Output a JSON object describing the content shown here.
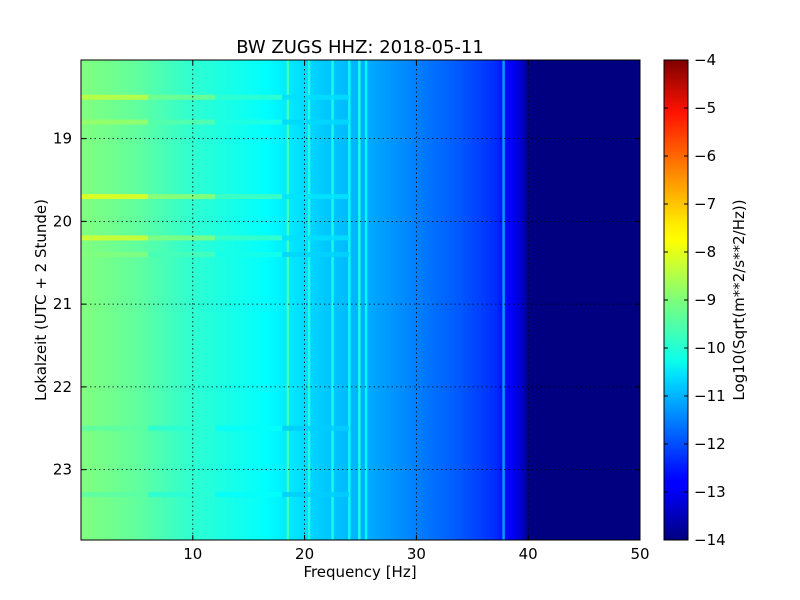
{
  "chart_data": {
    "type": "heatmap",
    "title": "BW ZUGS HHZ: 2018-05-11",
    "xlabel": "Frequency [Hz]",
    "ylabel": "Lokalzeit (UTC + 2 Stunde)",
    "xlim": [
      0,
      50
    ],
    "ylim": [
      18.05,
      23.85
    ],
    "x_ticks": [
      10,
      20,
      30,
      40,
      50
    ],
    "y_ticks": [
      19,
      20,
      21,
      22,
      23
    ],
    "grid": true,
    "colormap": "jet",
    "colorbar": {
      "label": "Log10(Sqrt(m**2/s**2/Hz))",
      "min": -14,
      "max": -4,
      "ticks": [
        -4,
        -5,
        -6,
        -7,
        -8,
        -9,
        -10,
        -11,
        -12,
        -13,
        -14
      ]
    },
    "spectrum_profile": {
      "freq_hz": [
        0,
        2,
        5,
        8,
        10,
        13,
        16,
        19,
        22,
        25,
        28,
        31,
        34,
        37,
        38.5,
        39.5,
        40,
        50
      ],
      "log10_level": [
        -9.0,
        -9.1,
        -9.3,
        -9.6,
        -9.8,
        -10.0,
        -10.2,
        -10.5,
        -10.8,
        -11.0,
        -11.3,
        -11.6,
        -11.9,
        -12.3,
        -12.8,
        -13.3,
        -14.0,
        -14.0
      ]
    },
    "spectral_lines": [
      {
        "freq_hz": 18.5,
        "log10_level": -9.6
      },
      {
        "freq_hz": 20.4,
        "log10_level": -9.9
      },
      {
        "freq_hz": 22.5,
        "log10_level": -10.1
      },
      {
        "freq_hz": 24.0,
        "log10_level": -10.2
      },
      {
        "freq_hz": 24.9,
        "log10_level": -10.0
      },
      {
        "freq_hz": 25.5,
        "log10_level": -10.3
      },
      {
        "freq_hz": 37.8,
        "log10_level": -11.2
      }
    ],
    "time_events": [
      {
        "time_h": 18.5,
        "log10_level": -8.2
      },
      {
        "time_h": 18.8,
        "log10_level": -8.6
      },
      {
        "time_h": 19.7,
        "log10_level": -7.8
      },
      {
        "time_h": 20.2,
        "log10_level": -8.0
      },
      {
        "time_h": 20.4,
        "log10_level": -8.8
      },
      {
        "time_h": 22.5,
        "log10_level": -9.2
      },
      {
        "time_h": 23.3,
        "log10_level": -9.2
      }
    ]
  }
}
